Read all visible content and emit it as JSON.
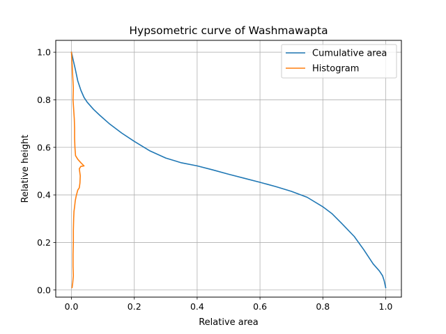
{
  "chart_data": {
    "type": "line",
    "title": "Hypsometric curve of Washmawapta",
    "xlabel": "Relative area",
    "ylabel": "Relative height",
    "xlim": [
      -0.05,
      1.05
    ],
    "ylim": [
      -0.03,
      1.05
    ],
    "xticks": [
      0.0,
      0.2,
      0.4,
      0.6,
      0.8,
      1.0
    ],
    "xtick_labels": [
      "0.0",
      "0.2",
      "0.4",
      "0.6",
      "0.8",
      "1.0"
    ],
    "yticks": [
      0.0,
      0.2,
      0.4,
      0.6,
      0.8,
      1.0
    ],
    "ytick_labels": [
      "0.0",
      "0.2",
      "0.4",
      "0.6",
      "0.8",
      "1.0"
    ],
    "grid": true,
    "legend_position": "top-right",
    "series": [
      {
        "name": "Cumulative area",
        "color": "#1f77b4",
        "points": [
          [
            0.0,
            1.0
          ],
          [
            0.005,
            0.97
          ],
          [
            0.012,
            0.93
          ],
          [
            0.02,
            0.88
          ],
          [
            0.03,
            0.84
          ],
          [
            0.04,
            0.81
          ],
          [
            0.05,
            0.79
          ],
          [
            0.07,
            0.76
          ],
          [
            0.09,
            0.735
          ],
          [
            0.12,
            0.7
          ],
          [
            0.16,
            0.66
          ],
          [
            0.2,
            0.625
          ],
          [
            0.25,
            0.585
          ],
          [
            0.3,
            0.555
          ],
          [
            0.35,
            0.535
          ],
          [
            0.4,
            0.522
          ],
          [
            0.45,
            0.505
          ],
          [
            0.5,
            0.487
          ],
          [
            0.55,
            0.47
          ],
          [
            0.6,
            0.453
          ],
          [
            0.65,
            0.435
          ],
          [
            0.7,
            0.415
          ],
          [
            0.75,
            0.39
          ],
          [
            0.8,
            0.35
          ],
          [
            0.83,
            0.32
          ],
          [
            0.86,
            0.28
          ],
          [
            0.9,
            0.225
          ],
          [
            0.93,
            0.17
          ],
          [
            0.96,
            0.11
          ],
          [
            0.98,
            0.08
          ],
          [
            0.99,
            0.06
          ],
          [
            0.995,
            0.04
          ],
          [
            1.0,
            0.01
          ]
        ]
      },
      {
        "name": "Histogram",
        "color": "#ff7f0e",
        "points": [
          [
            0.0,
            1.0
          ],
          [
            0.002,
            0.95
          ],
          [
            0.004,
            0.9
          ],
          [
            0.006,
            0.85
          ],
          [
            0.005,
            0.8
          ],
          [
            0.007,
            0.76
          ],
          [
            0.009,
            0.72
          ],
          [
            0.01,
            0.68
          ],
          [
            0.01,
            0.64
          ],
          [
            0.011,
            0.6
          ],
          [
            0.013,
            0.565
          ],
          [
            0.02,
            0.55
          ],
          [
            0.03,
            0.535
          ],
          [
            0.04,
            0.522
          ],
          [
            0.03,
            0.52
          ],
          [
            0.025,
            0.51
          ],
          [
            0.028,
            0.48
          ],
          [
            0.027,
            0.45
          ],
          [
            0.025,
            0.43
          ],
          [
            0.02,
            0.42
          ],
          [
            0.015,
            0.395
          ],
          [
            0.012,
            0.375
          ],
          [
            0.01,
            0.35
          ],
          [
            0.008,
            0.33
          ],
          [
            0.007,
            0.3
          ],
          [
            0.006,
            0.25
          ],
          [
            0.006,
            0.2
          ],
          [
            0.005,
            0.15
          ],
          [
            0.005,
            0.1
          ],
          [
            0.006,
            0.06
          ],
          [
            0.004,
            0.03
          ],
          [
            0.002,
            0.01
          ]
        ]
      }
    ]
  }
}
